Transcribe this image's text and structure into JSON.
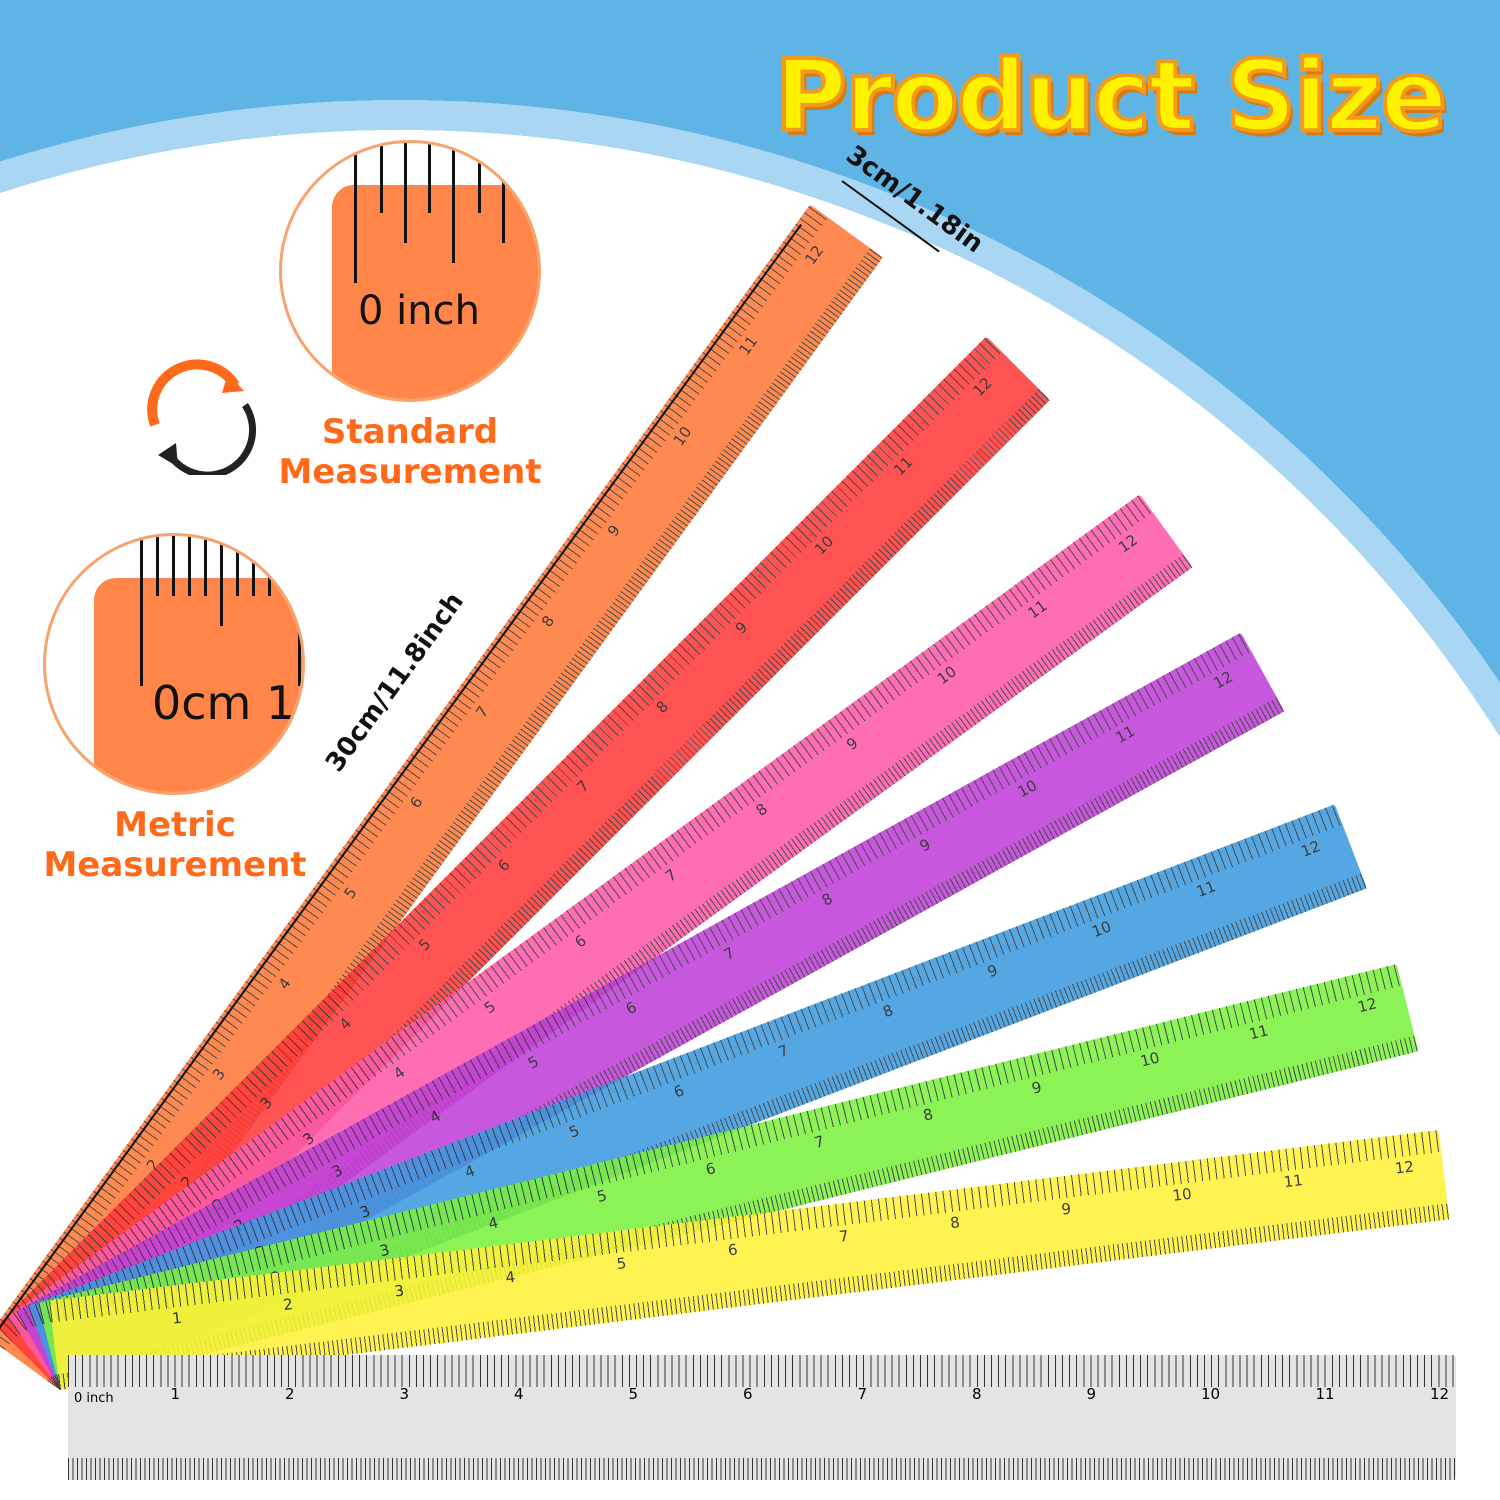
{
  "title": "Product Size",
  "width_label": "3cm/1.18in",
  "length_label": "30cm/11.8inch",
  "standard": {
    "zoom_label": "0 inch",
    "caption_line1": "Standard",
    "caption_line2": "Measurement"
  },
  "metric": {
    "zoom_label": "0cm 1",
    "caption_line1": "Metric",
    "caption_line2": "Measurement"
  },
  "rotate_icon": "rotate-arrows-icon",
  "ruler_start_inch": "0 inch",
  "ruler_start_cm": "0cm",
  "inch_marks": [
    1,
    2,
    3,
    4,
    5,
    6,
    7,
    8,
    9,
    10,
    11,
    12
  ],
  "rulers": [
    {
      "color": "#ff7a3a",
      "angle": -54
    },
    {
      "color": "#ff3b3b",
      "angle": -45
    },
    {
      "color": "#ff5aa8",
      "angle": -36
    },
    {
      "color": "#c040d8",
      "angle": -29
    },
    {
      "color": "#3d9be0",
      "angle": -21
    },
    {
      "color": "#7cf23e",
      "angle": -14
    },
    {
      "color": "#fff23a",
      "angle": -7
    }
  ],
  "gray_ruler": {
    "color": "#e4e4e4"
  }
}
